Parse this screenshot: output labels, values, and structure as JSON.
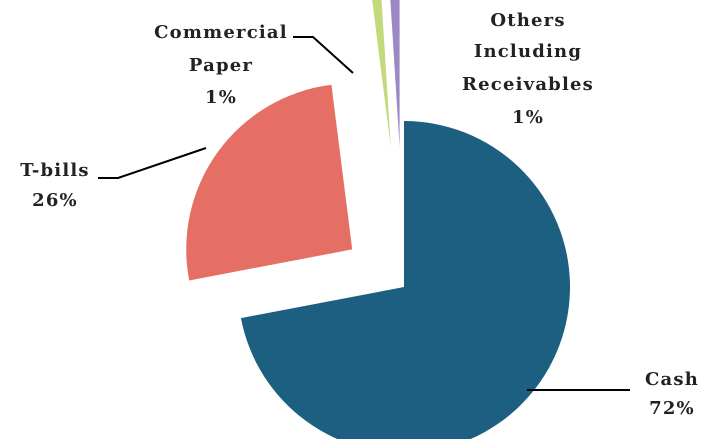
{
  "chart_data": {
    "type": "pie",
    "exploded": true,
    "slices": [
      {
        "name": "Cash",
        "value": 72,
        "label": "72%",
        "color": "#1d5f80"
      },
      {
        "name": "T-bills",
        "value": 26,
        "label": "26%",
        "color": "#e56f64"
      },
      {
        "name": "Commercial Paper",
        "value": 1,
        "label": "1%",
        "color": "#c2d97c"
      },
      {
        "name": "Others Including Receivables",
        "value": 1,
        "label": "1%",
        "color": "#9d88c4"
      }
    ]
  },
  "labels": {
    "cash": {
      "name": "Cash",
      "pct": "72%"
    },
    "tbills": {
      "name": "T-bills",
      "pct": "26%"
    },
    "cp": {
      "line1": "Commercial",
      "line2": "Paper",
      "pct": "1%"
    },
    "others": {
      "line1": "Others",
      "line2": "Including",
      "line3": "Receivables",
      "pct": "1%"
    }
  }
}
